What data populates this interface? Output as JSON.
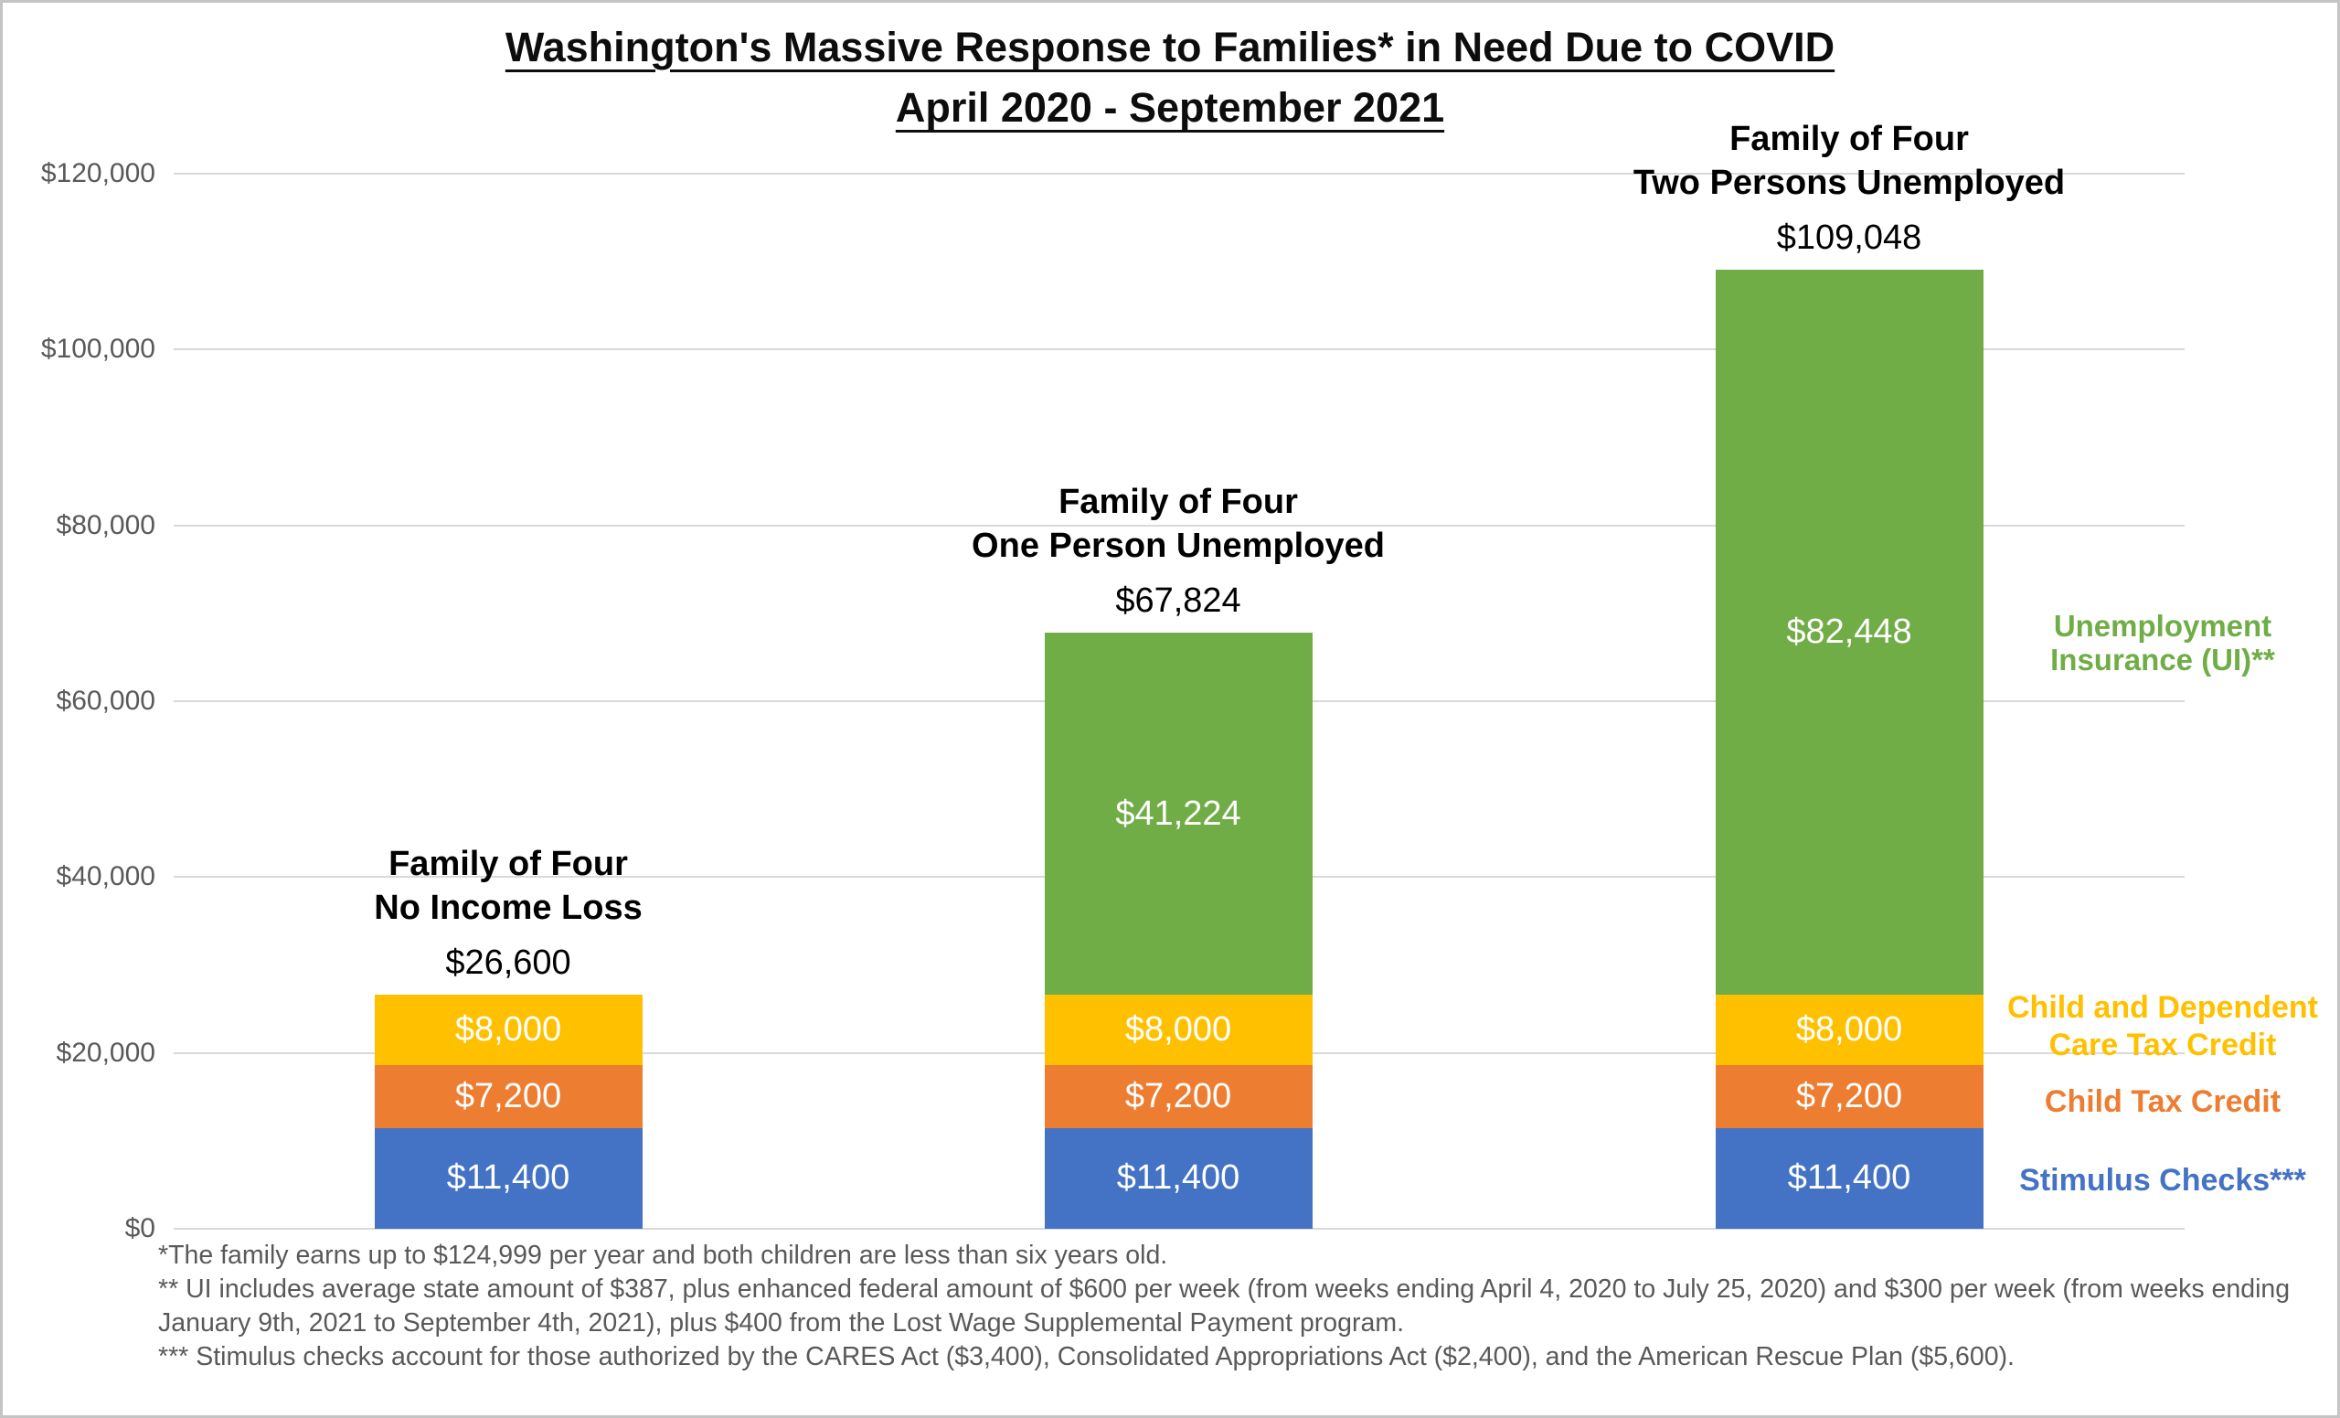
{
  "title": {
    "line1": "Washington's Massive Response to Families* in Need Due to COVID",
    "line2": "April 2020 - September 2021"
  },
  "chart_data": {
    "type": "bar",
    "stacked": true,
    "title": "Washington's Massive Response to Families* in Need Due to COVID",
    "subtitle": "April 2020 - September 2021",
    "categories": [
      [
        "Family of Four",
        "No Income Loss"
      ],
      [
        "Family of Four",
        "One Person Unemployed"
      ],
      [
        "Family of Four",
        "Two Persons Unemployed"
      ]
    ],
    "totals": [
      26600,
      67824,
      109048
    ],
    "series": [
      {
        "name": "Stimulus Checks***",
        "color": "#4472C4",
        "values": [
          11400,
          11400,
          11400
        ]
      },
      {
        "name": "Child Tax Credit",
        "color": "#ED7D31",
        "values": [
          7200,
          7200,
          7200
        ]
      },
      {
        "name": "Child and Dependent Care Tax Credit",
        "color": "#FFC000",
        "values": [
          8000,
          8000,
          8000
        ]
      },
      {
        "name": "Unemployment Insurance (UI)**",
        "color": "#70AD47",
        "values": [
          0,
          41224,
          82448
        ]
      }
    ],
    "y_axis": {
      "min": 0,
      "max": 120000,
      "tick_step": 20000,
      "ticks": [
        0,
        20000,
        40000,
        60000,
        80000,
        100000,
        120000
      ],
      "tick_labels": [
        "$0",
        "$20,000",
        "$40,000",
        "$60,000",
        "$80,000",
        "$100,000",
        "$120,000"
      ]
    },
    "grid": true,
    "legend_position": "right"
  },
  "legend": {
    "items": [
      {
        "lines": [
          "Unemployment",
          "Insurance (UI)**"
        ],
        "color": "#70AD47"
      },
      {
        "lines": [
          "Child and Dependent",
          "Care Tax Credit"
        ],
        "color": "#FFC000"
      },
      {
        "lines": [
          "Child Tax Credit"
        ],
        "color": "#ED7D31"
      },
      {
        "lines": [
          "Stimulus Checks***"
        ],
        "color": "#4472C4"
      }
    ]
  },
  "footnotes": [
    "*The family earns up to $124,999 per year and both children are less than six years old.",
    "** UI includes average state amount of $387, plus enhanced federal amount of $600 per week (from weeks ending April 4, 2020 to July 25, 2020) and $300 per week (from weeks ending January 9th, 2021 to September 4th, 2021), plus $400 from the Lost Wage Supplemental Payment program.",
    "*** Stimulus checks account for those authorized by the CARES Act ($3,400), Consolidated Appropriations Act ($2,400), and the American Rescue Plan ($5,600)."
  ]
}
